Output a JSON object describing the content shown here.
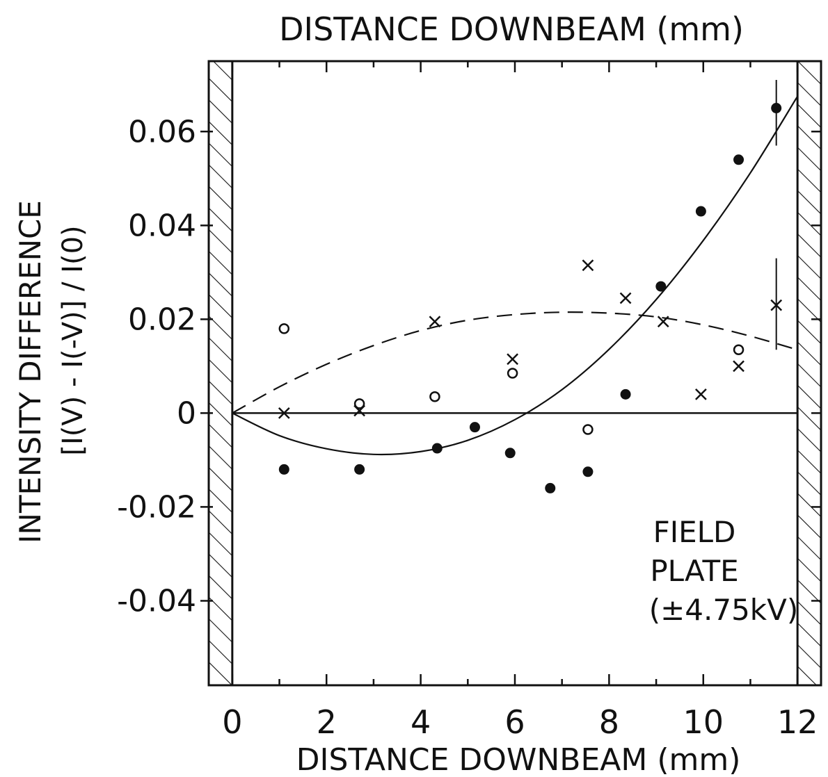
{
  "chart_data": {
    "type": "scatter",
    "title": "DISTANCE DOWNBEAM (mm)",
    "xlabel": "DISTANCE DOWNBEAM (mm)",
    "ylabel": "INTENSITY DIFFERENCE",
    "ylabel2": "[I(V) - I(-V)] / I(0)",
    "annotation": [
      "FIELD",
      "PLATE",
      "(±4.75kV)"
    ],
    "xlim": [
      -0.5,
      12.5
    ],
    "ylim": [
      -0.058,
      0.075
    ],
    "xticks": [
      0,
      2,
      4,
      6,
      8,
      10,
      12
    ],
    "xtick_labels": [
      "0",
      "2",
      "4",
      "6",
      "8",
      "10",
      "12"
    ],
    "yticks": [
      0.06,
      0.04,
      0.02,
      0,
      -0.02,
      -0.04
    ],
    "ytick_labels": [
      "0.06",
      "0.04",
      "0.02",
      "0",
      "-0.02",
      "-0.04"
    ],
    "hatched_regions": [
      [
        -0.5,
        0
      ],
      [
        12,
        12.5
      ]
    ],
    "grid": false,
    "series": [
      {
        "marker": "filled-circle",
        "x": [
          1.1,
          2.7,
          4.35,
          5.15,
          5.9,
          6.75,
          7.55,
          8.35,
          9.1,
          9.95,
          10.75,
          11.55
        ],
        "y": [
          -0.012,
          -0.012,
          -0.0075,
          -0.003,
          -0.0085,
          -0.016,
          -0.0125,
          0.004,
          0.027,
          0.043,
          0.054,
          0.065
        ]
      },
      {
        "marker": "open-circle",
        "x": [
          1.1,
          2.7,
          4.3,
          5.95,
          7.55,
          10.75
        ],
        "y": [
          0.018,
          0.002,
          0.0035,
          0.0085,
          -0.0035,
          0.0135
        ]
      },
      {
        "marker": "cross",
        "x": [
          1.1,
          2.7,
          4.3,
          5.95,
          7.55,
          8.35,
          9.15,
          9.95,
          10.75,
          11.55
        ],
        "y": [
          0.0,
          0.0005,
          0.0195,
          0.0115,
          0.0315,
          0.0245,
          0.0195,
          0.004,
          0.01,
          0.023
        ]
      }
    ],
    "curves": [
      {
        "style": "solid",
        "x": [
          0,
          1,
          2,
          3,
          4,
          5,
          6,
          7,
          8,
          9,
          10,
          11,
          12
        ],
        "y": [
          0,
          -0.0048,
          -0.0076,
          -0.0088,
          -0.0082,
          -0.0058,
          -0.0014,
          0.005,
          0.0136,
          0.0242,
          0.0368,
          0.0512,
          0.0675
        ]
      },
      {
        "style": "dashed",
        "x": [
          0,
          1,
          2,
          3,
          4,
          5,
          6,
          7,
          8,
          9,
          10,
          11,
          12
        ],
        "y": [
          0,
          0.0056,
          0.0104,
          0.0144,
          0.0176,
          0.0198,
          0.021,
          0.0215,
          0.0213,
          0.0205,
          0.0188,
          0.0164,
          0.0135
        ]
      },
      {
        "style": "solid-baseline",
        "x": [
          0,
          12
        ],
        "y": [
          0,
          0
        ]
      }
    ],
    "error_bars": [
      {
        "x": 11.55,
        "y": 0.023,
        "ylow": 0.0135,
        "yhigh": 0.033
      },
      {
        "x": 11.55,
        "y": 0.065,
        "ylow": 0.057,
        "yhigh": 0.071
      }
    ]
  }
}
